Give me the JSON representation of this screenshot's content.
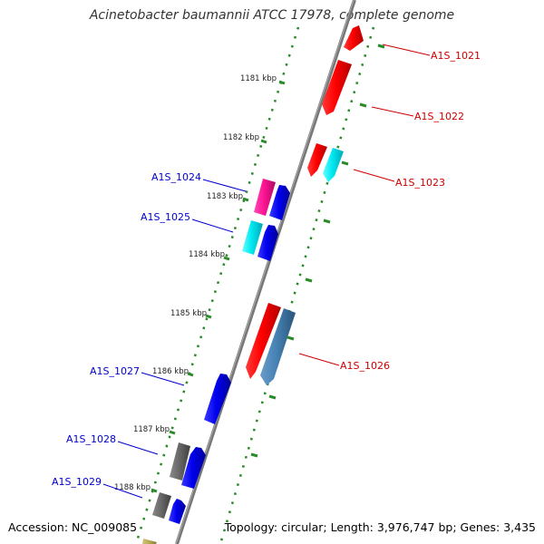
{
  "title": "Acinetobacter baumannii ATCC 17978, complete genome",
  "footer": {
    "accession": "Accession: NC_009085",
    "summary": "Topology: circular; Length: 3,976,747 bp; Genes: 3,435"
  },
  "colors": {
    "backbone": "#777777",
    "tick_ring": "#2a8a2a",
    "forward_label": "#cc0000",
    "reverse_label": "#0000cc"
  },
  "kbp_ticks": [
    "1181 kbp",
    "1182 kbp",
    "1183 kbp",
    "1184 kbp",
    "1185 kbp",
    "1186 kbp",
    "1187 kbp",
    "1188 kbp"
  ],
  "gene_labels": [
    {
      "text": "A1S_1021",
      "strand": "forward"
    },
    {
      "text": "A1S_1022",
      "strand": "forward"
    },
    {
      "text": "A1S_1023",
      "strand": "forward"
    },
    {
      "text": "A1S_1024",
      "strand": "reverse"
    },
    {
      "text": "A1S_1025",
      "strand": "reverse"
    },
    {
      "text": "A1S_1026",
      "strand": "forward"
    },
    {
      "text": "A1S_1027",
      "strand": "reverse"
    },
    {
      "text": "A1S_1028",
      "strand": "reverse"
    },
    {
      "text": "A1S_1029",
      "strand": "reverse"
    }
  ]
}
